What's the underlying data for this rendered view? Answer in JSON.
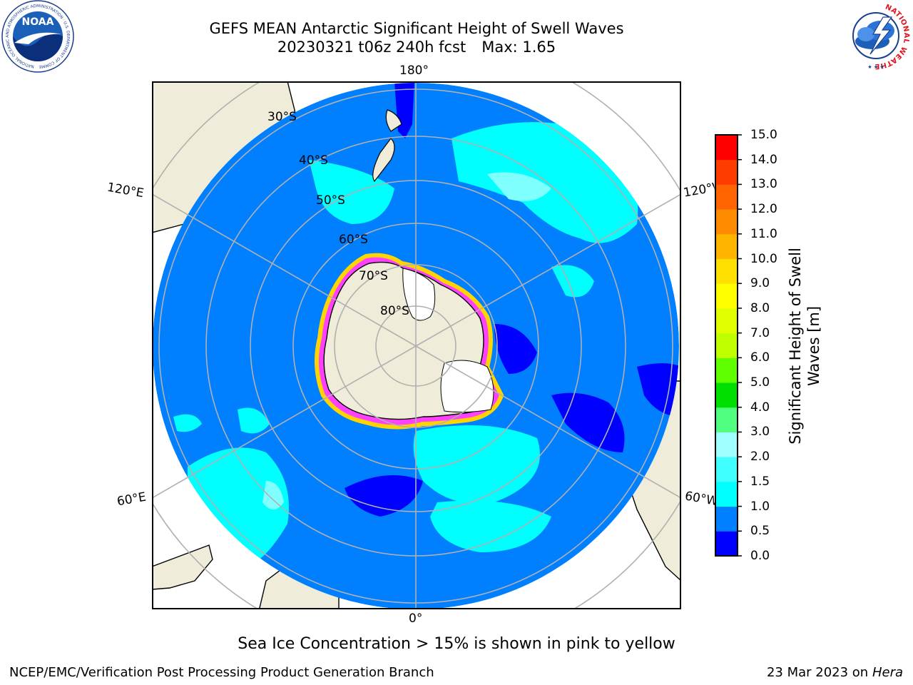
{
  "header": {
    "title_line1": "GEFS MEAN Antarctic Significant Height of Swell Waves",
    "run": "20230321 t06z 240h fcst",
    "max_label": "Max: 1.65"
  },
  "logos": {
    "noaa_text": "NOAA",
    "nws_ring_text": "NATIONAL WEATHER SERVICE"
  },
  "map": {
    "projection": "south-polar-stereographic",
    "longitude_labels": [
      "180°",
      "120°E",
      "120°W",
      "60°E",
      "60°W",
      "0°"
    ],
    "latitude_labels": [
      "30°S",
      "40°S",
      "50°S",
      "60°S",
      "70°S",
      "80°S"
    ],
    "colors": {
      "land": "#efedd9",
      "ice_free_land": "#ffffff",
      "ocean_low": "#0000ff",
      "ocean_main": "#0080ff",
      "swell_mid": "#00ffff",
      "swell_high": "#80ffff",
      "sea_ice_edge": "#ff00ff",
      "sea_ice_inner": "#ffd400",
      "grid": "#b0b0b0"
    }
  },
  "colorbar": {
    "label": "Significant Height of Swell Waves [m]",
    "ticks": [
      "0.0",
      "0.5",
      "1.0",
      "1.5",
      "2.0",
      "3.0",
      "4.0",
      "5.0",
      "6.0",
      "7.0",
      "8.0",
      "9.0",
      "10.0",
      "11.0",
      "12.0",
      "13.0",
      "14.0",
      "15.0"
    ],
    "colors": [
      "#0000ff",
      "#0080ff",
      "#00ffff",
      "#40ffff",
      "#a0ffff",
      "#50ff80",
      "#00e000",
      "#60ff00",
      "#c0ff00",
      "#e0ff00",
      "#ffff00",
      "#ffe000",
      "#ffb400",
      "#ff8c00",
      "#ff6400",
      "#ff3c00",
      "#ff0000"
    ]
  },
  "note": "Sea Ice Concentration > 15% is shown in pink to yellow",
  "footer": {
    "left": "NCEP/EMC/Verification Post Processing Product Generation Branch",
    "date": "23 Mar 2023 on",
    "machine": "Hera"
  }
}
